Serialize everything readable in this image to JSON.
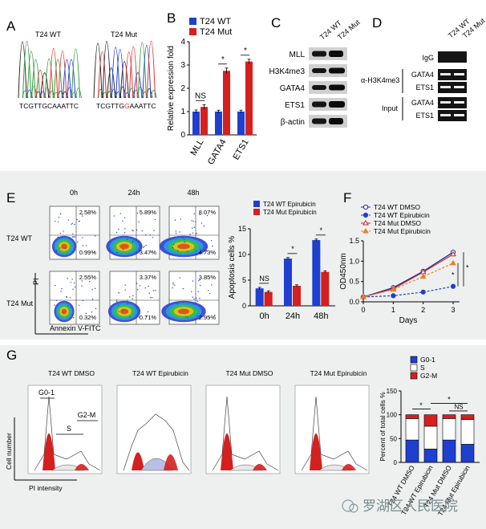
{
  "panels": {
    "A": "A",
    "B": "B",
    "C": "C",
    "D": "D",
    "E": "E",
    "F": "F",
    "G": "G"
  },
  "panel_a": {
    "wt_title": "T24 WT",
    "mut_title": "T24 Mut",
    "wt_seq": "TCGTTGCAAATTC",
    "mut_seq_prefix": "TCGTTG",
    "mut_seq_highlight": "G",
    "mut_seq_suffix": "AAATTC",
    "highlight_color": "#e0302a"
  },
  "panel_c": {
    "col_labels": [
      "T24 WT",
      "T24 Mut"
    ],
    "rows": [
      "MLL",
      "H3K4me3",
      "GATA4",
      "ETS1",
      "β-actin"
    ]
  },
  "panel_d": {
    "col_labels": [
      "T24 WT",
      "T24 Mut"
    ],
    "igg": "IgG",
    "ab_label": "α-H3K4me3",
    "input_label": "Input",
    "gene_rows": [
      "GATA4",
      "ETS1"
    ]
  },
  "panel_e_flow": {
    "times": [
      "0h",
      "24h",
      "48h"
    ],
    "rows": [
      {
        "label": "T24 WT",
        "top": [
          "2.58%",
          "5.89%",
          "8.07%"
        ],
        "bottom": [
          "0.99%",
          "3.47%",
          "4.73%"
        ]
      },
      {
        "label": "T24 Mut",
        "top": [
          "2.55%",
          "3.37%",
          "3.85%"
        ],
        "bottom": [
          "0.32%",
          "0.71%",
          "2.95%"
        ]
      }
    ],
    "y_axis": "PI",
    "x_axis": "Annexin V-FITC"
  },
  "panel_g_flow": {
    "titles": [
      "T24 WT DMSO",
      "T24 WT Epirubicin",
      "T24 Mut DMSO",
      "T24 Mut Epirubicin"
    ],
    "phase_labels": [
      "G0-1",
      "S",
      "G2-M"
    ],
    "y_axis": "Cell number",
    "x_axis": "PI intensity"
  },
  "watermark": "罗湖区人民医院",
  "colors": {
    "blue": "#1f3fd0",
    "red": "#d4201f",
    "gray": "#9a9a9a"
  },
  "chart_data": [
    {
      "id": "B",
      "type": "bar",
      "ylabel": "Relative expression fold",
      "ylim": [
        0,
        4
      ],
      "yticks": [
        "0",
        "1",
        "2",
        "3",
        "4"
      ],
      "categories": [
        "MLL",
        "GATA4",
        "ETS1"
      ],
      "series": [
        {
          "name": "T24 WT",
          "values": [
            1.0,
            1.0,
            1.0
          ],
          "err": [
            0.07,
            0.06,
            0.06
          ]
        },
        {
          "name": "T24 Mut",
          "values": [
            1.2,
            2.75,
            3.15
          ],
          "err": [
            0.1,
            0.12,
            0.1
          ]
        }
      ],
      "annotations": [
        "NS",
        "*",
        "*"
      ],
      "legend": "top-left"
    },
    {
      "id": "E",
      "type": "bar",
      "ylabel": "Apoptosis cells %",
      "ylim": [
        0,
        15
      ],
      "yticks": [
        "0",
        "5",
        "10",
        "15"
      ],
      "categories": [
        "0h",
        "24h",
        "48h"
      ],
      "series": [
        {
          "name": "T24 WT Epirubicin",
          "values": [
            3.4,
            9.2,
            12.8
          ],
          "err": [
            0.2,
            0.2,
            0.2
          ]
        },
        {
          "name": "T24 Mut Epirubicin",
          "values": [
            2.7,
            3.9,
            6.6
          ],
          "err": [
            0.2,
            0.2,
            0.2
          ]
        }
      ],
      "annotations": [
        "NS",
        "*",
        "*"
      ],
      "legend": "top"
    },
    {
      "id": "F",
      "type": "line",
      "ylabel": "OD450nm",
      "xlabel": "Days",
      "ylim": [
        0,
        1.5
      ],
      "xlim": [
        0,
        3
      ],
      "yticks": [
        "0.0",
        "0.5",
        "1.0",
        "1.5"
      ],
      "xticks": [
        "0",
        "1",
        "2",
        "3"
      ],
      "x": [
        0,
        1,
        2,
        3
      ],
      "series": [
        {
          "name": "T24 WT DMSO",
          "values": [
            0.12,
            0.35,
            0.75,
            1.22
          ],
          "color": "#2323a0",
          "marker": "open-circle",
          "dash": false
        },
        {
          "name": "T24 WT Epirubicin",
          "values": [
            0.12,
            0.15,
            0.24,
            0.38
          ],
          "color": "#1f3fd0",
          "marker": "filled-circle",
          "dash": true
        },
        {
          "name": "T24 Mut DMSO",
          "values": [
            0.12,
            0.32,
            0.73,
            1.17
          ],
          "color": "#c02828",
          "marker": "open-triangle",
          "dash": false
        },
        {
          "name": "T24 Mut Epirubicin",
          "values": [
            0.12,
            0.3,
            0.62,
            0.95
          ],
          "color": "#e8801e",
          "marker": "filled-triangle",
          "dash": true
        }
      ],
      "annotations": [
        "*",
        "*"
      ],
      "legend": "top-left"
    },
    {
      "id": "G",
      "type": "bar",
      "ylabel": "Percent of total cells %",
      "ylim": [
        0,
        150
      ],
      "yticks": [
        "0",
        "50",
        "100",
        "150"
      ],
      "categories": [
        "T24 WT DMSO",
        "T24 WT Epirubicin",
        "T24 Mut DMSO",
        "T24 Mut Epirubicin"
      ],
      "series": [
        {
          "name": "G0-1",
          "values": [
            47,
            28,
            47,
            38
          ]
        },
        {
          "name": "S",
          "values": [
            45,
            48,
            45,
            52
          ]
        },
        {
          "name": "G2-M",
          "values": [
            8,
            24,
            8,
            10
          ]
        }
      ],
      "annotations": [
        "*",
        "NS",
        "*"
      ],
      "legend": "top"
    }
  ]
}
